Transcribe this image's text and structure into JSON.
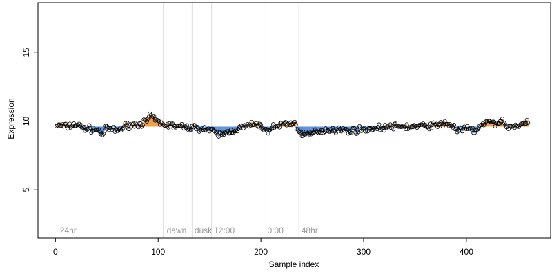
{
  "chart_data": {
    "type": "scatter",
    "xlabel": "Sample index",
    "ylabel": "Expression",
    "xlim": [
      -17,
      482
    ],
    "ylim": [
      1.5,
      18.6
    ],
    "x_ticks": [
      0,
      100,
      200,
      300,
      400
    ],
    "y_ticks": [
      5,
      10,
      15
    ],
    "baseline": 9.6,
    "vlines": [
      105,
      133,
      152,
      203,
      237
    ],
    "annotations": [
      {
        "label": "24hr",
        "x": 3
      },
      {
        "label": "dawn",
        "x": 107
      },
      {
        "label": "dusk",
        "x": 134
      },
      {
        "label": "12:00",
        "x": 153
      },
      {
        "label": "0:00",
        "x": 205
      },
      {
        "label": "48hr",
        "x": 238
      }
    ],
    "colors": {
      "above": "#f0a04b",
      "below": "#5b8fd6",
      "vline": "#dddddd",
      "annotation": "#9a9a9a"
    },
    "n_points": 460,
    "anchors": [
      [
        1,
        9.7
      ],
      [
        10,
        9.6
      ],
      [
        20,
        9.75
      ],
      [
        30,
        9.45
      ],
      [
        40,
        9.4
      ],
      [
        46,
        9.05
      ],
      [
        50,
        9.5
      ],
      [
        60,
        9.3
      ],
      [
        70,
        9.7
      ],
      [
        80,
        9.75
      ],
      [
        88,
        9.95
      ],
      [
        93,
        10.35
      ],
      [
        97,
        10.1
      ],
      [
        102,
        9.85
      ],
      [
        110,
        9.7
      ],
      [
        120,
        9.6
      ],
      [
        130,
        9.55
      ],
      [
        140,
        9.5
      ],
      [
        150,
        9.35
      ],
      [
        160,
        9.0
      ],
      [
        168,
        9.2
      ],
      [
        180,
        9.5
      ],
      [
        190,
        9.7
      ],
      [
        200,
        9.75
      ],
      [
        204,
        9.2
      ],
      [
        210,
        9.5
      ],
      [
        222,
        9.8
      ],
      [
        232,
        9.85
      ],
      [
        236,
        9.55
      ],
      [
        240,
        8.95
      ],
      [
        246,
        9.0
      ],
      [
        256,
        9.3
      ],
      [
        270,
        9.4
      ],
      [
        285,
        9.3
      ],
      [
        300,
        9.4
      ],
      [
        315,
        9.5
      ],
      [
        330,
        9.6
      ],
      [
        345,
        9.6
      ],
      [
        360,
        9.65
      ],
      [
        372,
        9.7
      ],
      [
        380,
        9.85
      ],
      [
        388,
        9.6
      ],
      [
        392,
        9.3
      ],
      [
        400,
        9.45
      ],
      [
        408,
        9.3
      ],
      [
        415,
        9.7
      ],
      [
        422,
        9.95
      ],
      [
        428,
        9.8
      ],
      [
        434,
        10.05
      ],
      [
        440,
        9.55
      ],
      [
        450,
        9.7
      ],
      [
        461,
        9.85
      ]
    ],
    "seed": 7
  }
}
